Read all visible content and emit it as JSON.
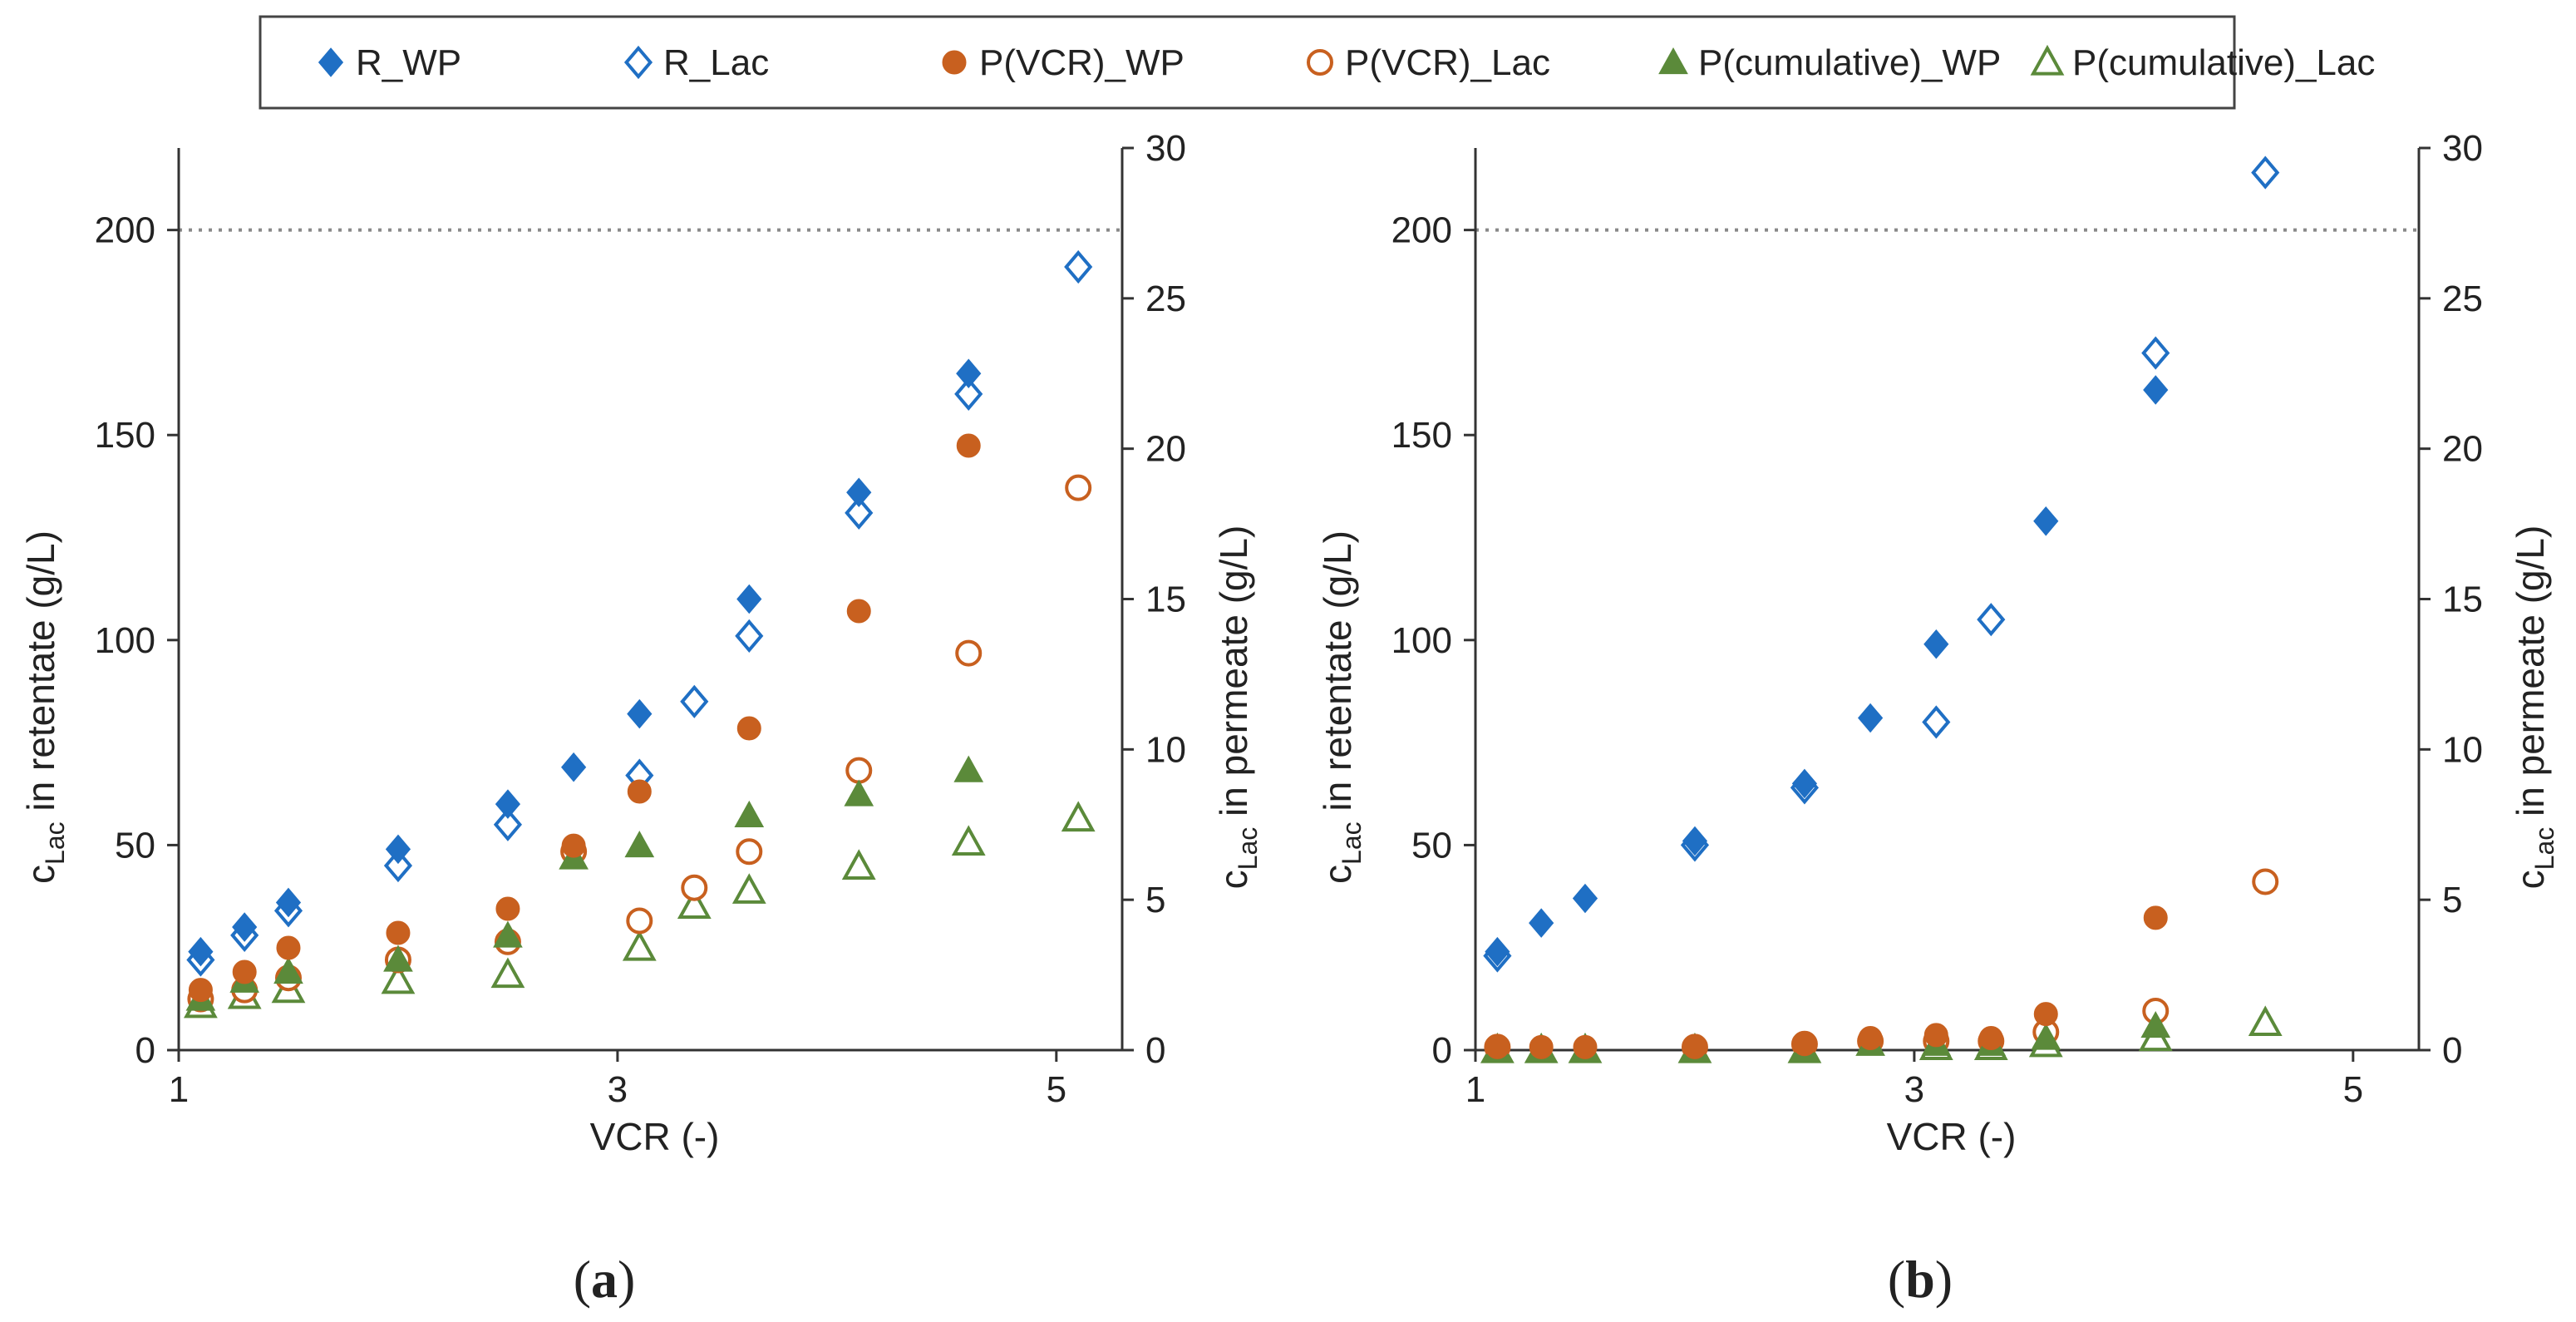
{
  "legend": {
    "items": [
      {
        "label": "R_WP",
        "marker": "diamond-filled",
        "color": "#1f6fc4"
      },
      {
        "label": "R_Lac",
        "marker": "diamond-open",
        "color": "#1f6fc4"
      },
      {
        "label": "P(VCR)_WP",
        "marker": "circle-filled",
        "color": "#c8601f"
      },
      {
        "label": "P(VCR)_Lac",
        "marker": "circle-open",
        "color": "#c8601f"
      },
      {
        "label": "P(cumulative)_WP",
        "marker": "triangle-filled",
        "color": "#5b8a3a"
      },
      {
        "label": "P(cumulative)_Lac",
        "marker": "triangle-open",
        "color": "#5b8a3a"
      }
    ]
  },
  "axis_text": {
    "xlabel": "VCR (-)",
    "ylabel_left_prefix": "c",
    "ylabel_left_sub": "Lac",
    "ylabel_left_suffix": " in retentate (g/L)",
    "ylabel_right_prefix": "c",
    "ylabel_right_sub": "Lac",
    "ylabel_right_suffix": " in permeate (g/L)"
  },
  "chart_data": [
    {
      "type": "scatter",
      "panel_label": "(a)",
      "panel_letter": "a",
      "xlabel": "VCR (-)",
      "ylabel_left": "cLac in retentate (g/L)",
      "ylabel_right": "cLac in permeate (g/L)",
      "xlim": [
        1,
        5.3
      ],
      "xticks": [
        1,
        3,
        5
      ],
      "ylim_left": [
        0,
        220
      ],
      "yticks_left": [
        0,
        50,
        100,
        150,
        200
      ],
      "ylim_right": [
        0,
        30
      ],
      "yticks_right": [
        0,
        5,
        10,
        15,
        20,
        25,
        30
      ],
      "reference_line_left": 200,
      "series": [
        {
          "name": "R_WP",
          "axis": "left",
          "x": [
            1.1,
            1.3,
            1.5,
            2.0,
            2.5,
            2.8,
            3.1,
            3.6,
            4.1,
            4.6
          ],
          "y": [
            24,
            30,
            36,
            49,
            60,
            69,
            82,
            110,
            136,
            165
          ]
        },
        {
          "name": "R_Lac",
          "axis": "left",
          "x": [
            1.1,
            1.3,
            1.5,
            2.0,
            2.5,
            3.1,
            3.35,
            3.6,
            4.1,
            4.6,
            5.1
          ],
          "y": [
            22,
            28,
            34,
            45,
            55,
            67,
            85,
            101,
            131,
            160,
            191
          ]
        },
        {
          "name": "P(VCR)_WP",
          "axis": "right",
          "x": [
            1.1,
            1.3,
            1.5,
            2.0,
            2.5,
            2.8,
            3.1,
            3.6,
            4.1,
            4.6
          ],
          "y": [
            2.0,
            2.6,
            3.4,
            3.9,
            4.7,
            6.8,
            8.6,
            10.7,
            14.6,
            20.1
          ]
        },
        {
          "name": "P(VCR)_Lac",
          "axis": "right",
          "x": [
            1.1,
            1.3,
            1.5,
            2.0,
            2.5,
            2.8,
            3.1,
            3.35,
            3.6,
            4.1,
            4.6,
            5.1
          ],
          "y": [
            1.7,
            2.0,
            2.4,
            3.0,
            3.6,
            6.6,
            4.3,
            5.4,
            6.6,
            9.3,
            13.2,
            18.7
          ]
        },
        {
          "name": "P(cumulative)_WP",
          "axis": "right",
          "x": [
            1.1,
            1.3,
            1.5,
            2.0,
            2.5,
            2.8,
            3.1,
            3.6,
            4.1,
            4.6
          ],
          "y": [
            1.7,
            2.3,
            2.6,
            3.0,
            3.8,
            6.4,
            6.8,
            7.8,
            8.5,
            9.3
          ]
        },
        {
          "name": "P(cumulative)_Lac",
          "axis": "right",
          "x": [
            1.1,
            1.3,
            1.5,
            2.0,
            2.5,
            3.1,
            3.35,
            3.6,
            4.1,
            4.6,
            5.1
          ],
          "y": [
            1.5,
            1.8,
            2.0,
            2.3,
            2.5,
            3.4,
            4.8,
            5.3,
            6.1,
            6.9,
            7.7
          ]
        }
      ]
    },
    {
      "type": "scatter",
      "panel_label": "(b)",
      "panel_letter": "b",
      "xlabel": "VCR (-)",
      "ylabel_left": "cLac in retentate (g/L)",
      "ylabel_right": "cLac in permeate (g/L)",
      "xlim": [
        1,
        5.3
      ],
      "xticks": [
        1,
        3,
        5
      ],
      "ylim_left": [
        0,
        220
      ],
      "yticks_left": [
        0,
        50,
        100,
        150,
        200
      ],
      "ylim_right": [
        0,
        30
      ],
      "yticks_right": [
        0,
        5,
        10,
        15,
        20,
        25,
        30
      ],
      "reference_line_left": 200,
      "series": [
        {
          "name": "R_WP",
          "axis": "left",
          "x": [
            1.1,
            1.3,
            1.5,
            2.0,
            2.5,
            2.8,
            3.1,
            3.6,
            4.1
          ],
          "y": [
            24,
            31,
            37,
            51,
            65,
            81,
            99,
            129,
            161
          ]
        },
        {
          "name": "R_Lac",
          "axis": "left",
          "x": [
            1.1,
            2.0,
            2.5,
            3.1,
            3.35,
            4.1,
            4.6
          ],
          "y": [
            23,
            50,
            64,
            80,
            105,
            170,
            214
          ]
        },
        {
          "name": "P(VCR)_WP",
          "axis": "right",
          "x": [
            1.1,
            1.3,
            1.5,
            2.0,
            2.5,
            2.8,
            3.1,
            3.35,
            3.6,
            4.1
          ],
          "y": [
            0.1,
            0.1,
            0.1,
            0.1,
            0.2,
            0.4,
            0.5,
            0.4,
            1.2,
            4.4
          ]
        },
        {
          "name": "P(VCR)_Lac",
          "axis": "right",
          "x": [
            1.1,
            2.0,
            2.5,
            2.8,
            3.1,
            3.35,
            3.6,
            4.1,
            4.6
          ],
          "y": [
            0.1,
            0.1,
            0.2,
            0.3,
            0.3,
            0.3,
            0.6,
            1.3,
            5.6
          ]
        },
        {
          "name": "P(cumulative)_WP",
          "axis": "right",
          "x": [
            1.1,
            1.3,
            1.5,
            2.0,
            2.5,
            2.8,
            3.1,
            3.35,
            3.6,
            4.1
          ],
          "y": [
            0.0,
            0.0,
            0.0,
            0.0,
            0.0,
            0.2,
            0.2,
            0.2,
            0.4,
            0.8
          ]
        },
        {
          "name": "P(cumulative)_Lac",
          "axis": "right",
          "x": [
            1.1,
            1.3,
            1.5,
            2.0,
            2.5,
            3.1,
            3.35,
            3.6,
            4.1,
            4.6
          ],
          "y": [
            0.0,
            0.0,
            0.0,
            0.0,
            0.0,
            0.1,
            0.1,
            0.2,
            0.4,
            0.9
          ]
        }
      ]
    }
  ]
}
